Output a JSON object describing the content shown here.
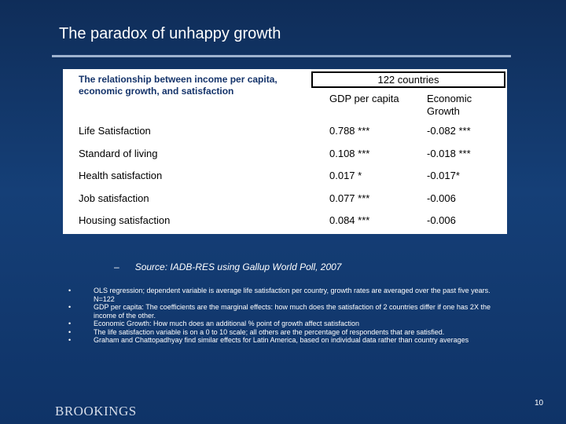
{
  "title": "The paradox of unhappy growth",
  "table": {
    "caption": "The relationship between income per capita, economic growth, and satisfaction",
    "group_header": "122 countries",
    "col1_header": "GDP per capita",
    "col2_header": "Economic Growth",
    "rows": [
      {
        "label": "Life Satisfaction",
        "gdp": "0.788 ***",
        "growth": "-0.082 ***"
      },
      {
        "label": "Standard of living",
        "gdp": "0.108 ***",
        "growth": "-0.018 ***"
      },
      {
        "label": "Health satisfaction",
        "gdp": "0.017 *",
        "growth": "-0.017*"
      },
      {
        "label": "Job satisfaction",
        "gdp": "0.077 ***",
        "growth": "-0.006"
      },
      {
        "label": "Housing satisfaction",
        "gdp": "0.084 ***",
        "growth": "-0.006"
      }
    ]
  },
  "source": {
    "dash": "–",
    "text": "Source: IADB-RES using Gallup World Poll, 2007"
  },
  "notes": [
    "OLS regression; dependent variable is average life satisfaction per country, growth rates are averaged over the past five years. N=122",
    "GDP per capita: The coefficients are the marginal effects: how much does the satisfaction of 2 countries differ if one has 2X the income of the other.",
    "Economic Growth: How much does an additional % point of growth affect satisfaction",
    "The life satisfaction variable is on a 0 to 10 scale; all others are the percentage of respondents that are satisfied.",
    "Graham and Chattopadhyay find similar effects for Latin America, based on individual data rather than country averages"
  ],
  "bullet": "•",
  "logo_text": "BROOKINGS",
  "page_number": "10"
}
